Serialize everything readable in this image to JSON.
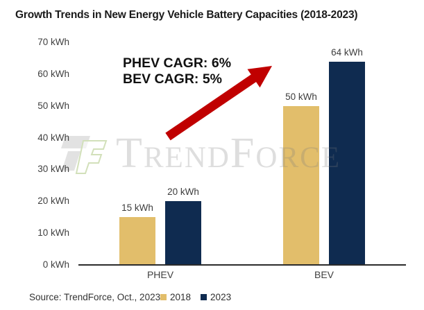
{
  "title": "Growth Trends in New Energy Vehicle Battery Capacities (2018-2023)",
  "annotation": {
    "line1": "PHEV CAGR: 6%",
    "line2": "BEV CAGR: 5%"
  },
  "watermark": {
    "text": "TrendForce"
  },
  "source": "Source: TrendForce, Oct., 2023",
  "colors": {
    "gold": "#E2BE6B",
    "navy": "#0F2B50",
    "arrow_red": "#C00000",
    "axis_text": "#404040"
  },
  "chart_data": {
    "type": "bar",
    "title": "Growth Trends in New Energy Vehicle Battery Capacities (2018-2023)",
    "categories": [
      "PHEV",
      "BEV"
    ],
    "series": [
      {
        "name": "2018",
        "color": "#E2BE6B",
        "values": [
          15,
          50
        ],
        "data_labels": [
          "15 kWh",
          "50 kWh"
        ]
      },
      {
        "name": "2023",
        "color": "#0F2B50",
        "values": [
          20,
          64
        ],
        "data_labels": [
          "20 kWh",
          "64 kWh"
        ]
      }
    ],
    "unit": "kWh",
    "ylim": [
      0,
      70
    ],
    "ytick_step": 10,
    "ytick_labels": [
      "0 kWh",
      "10 kWh",
      "20 kWh",
      "30 kWh",
      "40 kWh",
      "50 kWh",
      "60 kWh",
      "70 kWh"
    ],
    "grid": false,
    "legend_position": "bottom",
    "annotations": [
      "PHEV CAGR: 6%",
      "BEV CAGR: 5%"
    ],
    "annotation_arrow": "red upward diagonal arrow from lower-left to upper-right"
  },
  "legend": {
    "items": [
      {
        "label": "2018",
        "color": "#E2BE6B"
      },
      {
        "label": "2023",
        "color": "#0F2B50"
      }
    ]
  }
}
